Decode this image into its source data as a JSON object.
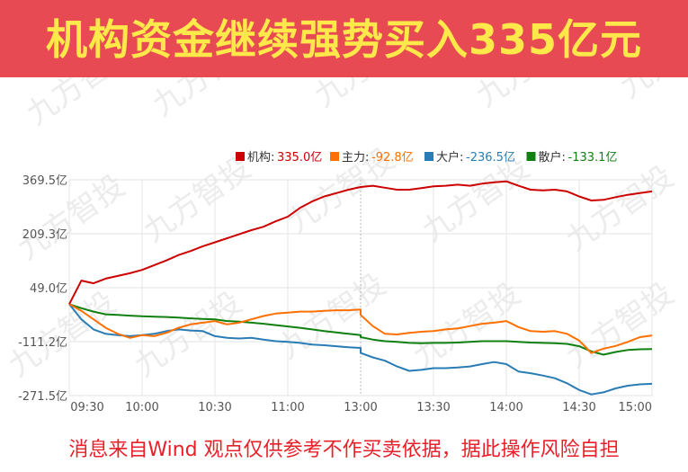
{
  "banner": {
    "title": "机构资金继续强势买入335亿元"
  },
  "footer": {
    "disclaimer": "消息来自Wind 观点仅供参考不作买卖依据，据此操作风险自担"
  },
  "watermark": {
    "text": "九方智投"
  },
  "colors": {
    "banner_bg": "#e84a54",
    "banner_text": "#ffe84a",
    "footer_text": "#e8202a"
  },
  "chart_data": {
    "type": "line",
    "title": "",
    "xlabel": "",
    "ylabel": "",
    "x_ticks": [
      "09:30",
      "10:00",
      "10:30",
      "11:00",
      "13:00",
      "13:30",
      "14:00",
      "14:30",
      "15:00"
    ],
    "y_ticks": [
      369.5,
      209.3,
      49.0,
      -111.2,
      -271.5
    ],
    "y_tick_labels": [
      "369.5亿",
      "209.3亿",
      "49.0亿",
      "-111.2亿",
      "-271.5亿"
    ],
    "ylim": [
      -271.5,
      369.5
    ],
    "grid": true,
    "legend_position": "top-right",
    "series": [
      {
        "name": "机构",
        "legend_label": "机构:",
        "legend_value": "335.0亿",
        "color": "#cc0000",
        "x": [
          "09:30",
          "09:35",
          "09:40",
          "09:45",
          "09:50",
          "09:55",
          "10:00",
          "10:05",
          "10:10",
          "10:15",
          "10:20",
          "10:25",
          "10:30",
          "10:35",
          "10:40",
          "10:45",
          "10:50",
          "10:55",
          "11:00",
          "11:05",
          "11:10",
          "11:15",
          "11:20",
          "11:25",
          "11:30",
          "13:00",
          "13:05",
          "13:10",
          "13:15",
          "13:20",
          "13:25",
          "13:30",
          "13:35",
          "13:40",
          "13:45",
          "13:50",
          "13:55",
          "14:00",
          "14:05",
          "14:10",
          "14:15",
          "14:20",
          "14:25",
          "14:30",
          "14:35",
          "14:40",
          "14:45",
          "14:50",
          "14:55",
          "15:00"
        ],
        "y": [
          0,
          70,
          62,
          76,
          84,
          92,
          102,
          116,
          130,
          146,
          158,
          172,
          184,
          196,
          208,
          220,
          230,
          246,
          260,
          286,
          305,
          320,
          330,
          340,
          348,
          348,
          352,
          346,
          340,
          340,
          345,
          350,
          352,
          355,
          352,
          358,
          362,
          365,
          352,
          340,
          338,
          340,
          335,
          320,
          308,
          310,
          318,
          325,
          330,
          335
        ]
      },
      {
        "name": "主力",
        "legend_label": "主力:",
        "legend_value": "-92.8亿",
        "color": "#ff7000",
        "x": [
          "09:30",
          "09:35",
          "09:40",
          "09:45",
          "09:50",
          "09:55",
          "10:00",
          "10:05",
          "10:10",
          "10:15",
          "10:20",
          "10:25",
          "10:30",
          "10:35",
          "10:40",
          "10:45",
          "10:50",
          "10:55",
          "11:00",
          "11:05",
          "11:10",
          "11:15",
          "11:20",
          "11:25",
          "11:30",
          "13:00",
          "13:05",
          "13:10",
          "13:15",
          "13:20",
          "13:25",
          "13:30",
          "13:35",
          "13:40",
          "13:45",
          "13:50",
          "13:55",
          "14:00",
          "14:05",
          "14:10",
          "14:15",
          "14:20",
          "14:25",
          "14:30",
          "14:35",
          "14:40",
          "14:45",
          "14:50",
          "14:55",
          "15:00"
        ],
        "y": [
          0,
          -20,
          -45,
          -70,
          -88,
          -100,
          -92,
          -95,
          -85,
          -70,
          -60,
          -55,
          -50,
          -60,
          -55,
          -45,
          -35,
          -28,
          -25,
          -22,
          -22,
          -20,
          -18,
          -18,
          -16,
          -32,
          -65,
          -88,
          -90,
          -85,
          -82,
          -80,
          -75,
          -72,
          -65,
          -58,
          -55,
          -50,
          -68,
          -80,
          -82,
          -80,
          -88,
          -108,
          -145,
          -132,
          -124,
          -112,
          -98,
          -92.8
        ]
      },
      {
        "name": "大户",
        "legend_label": "大户:",
        "legend_value": "-236.5亿",
        "color": "#2a7cb5",
        "x": [
          "09:30",
          "09:35",
          "09:40",
          "09:45",
          "09:50",
          "09:55",
          "10:00",
          "10:05",
          "10:10",
          "10:15",
          "10:20",
          "10:25",
          "10:30",
          "10:35",
          "10:40",
          "10:45",
          "10:50",
          "10:55",
          "11:00",
          "11:05",
          "11:10",
          "11:15",
          "11:20",
          "11:25",
          "11:30",
          "13:00",
          "13:05",
          "13:10",
          "13:15",
          "13:20",
          "13:25",
          "13:30",
          "13:35",
          "13:40",
          "13:45",
          "13:50",
          "13:55",
          "14:00",
          "14:05",
          "14:10",
          "14:15",
          "14:20",
          "14:25",
          "14:30",
          "14:35",
          "14:40",
          "14:45",
          "14:50",
          "14:55",
          "15:00"
        ],
        "y": [
          0,
          -45,
          -75,
          -88,
          -92,
          -95,
          -92,
          -88,
          -80,
          -75,
          -78,
          -80,
          -95,
          -100,
          -102,
          -100,
          -105,
          -110,
          -112,
          -115,
          -120,
          -122,
          -125,
          -128,
          -130,
          -145,
          -158,
          -168,
          -185,
          -198,
          -195,
          -190,
          -190,
          -188,
          -185,
          -178,
          -172,
          -178,
          -200,
          -205,
          -212,
          -220,
          -235,
          -255,
          -268,
          -262,
          -250,
          -242,
          -238,
          -236.5
        ]
      },
      {
        "name": "散户",
        "legend_label": "散户:",
        "legend_value": "-133.1亿",
        "color": "#108010",
        "x": [
          "09:30",
          "09:35",
          "09:40",
          "09:45",
          "09:50",
          "09:55",
          "10:00",
          "10:05",
          "10:10",
          "10:15",
          "10:20",
          "10:25",
          "10:30",
          "10:35",
          "10:40",
          "10:45",
          "10:50",
          "10:55",
          "11:00",
          "11:05",
          "11:10",
          "11:15",
          "11:20",
          "11:25",
          "11:30",
          "13:00",
          "13:05",
          "13:10",
          "13:15",
          "13:20",
          "13:25",
          "13:30",
          "13:35",
          "13:40",
          "13:45",
          "13:50",
          "13:55",
          "14:00",
          "14:05",
          "14:10",
          "14:15",
          "14:20",
          "14:25",
          "14:30",
          "14:35",
          "14:40",
          "14:45",
          "14:50",
          "14:55",
          "15:00"
        ],
        "y": [
          0,
          -12,
          -22,
          -30,
          -32,
          -34,
          -36,
          -37,
          -38,
          -40,
          -42,
          -44,
          -45,
          -50,
          -52,
          -55,
          -58,
          -62,
          -66,
          -70,
          -75,
          -80,
          -84,
          -88,
          -92,
          -98,
          -105,
          -110,
          -112,
          -115,
          -116,
          -115,
          -115,
          -114,
          -112,
          -110,
          -110,
          -110,
          -112,
          -114,
          -115,
          -116,
          -118,
          -125,
          -140,
          -150,
          -142,
          -136,
          -134,
          -133.1
        ]
      }
    ]
  }
}
